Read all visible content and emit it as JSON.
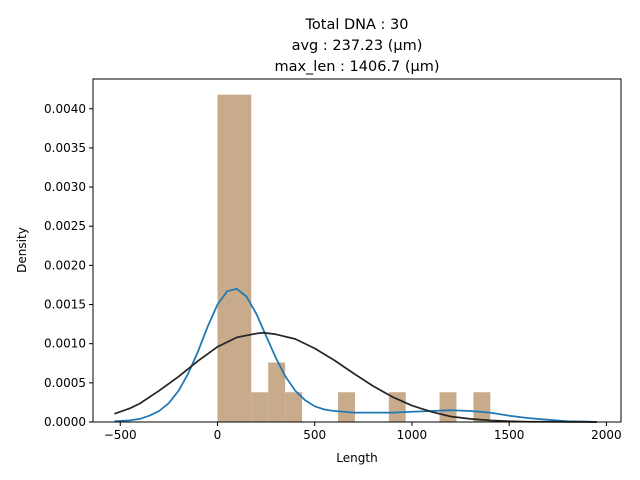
{
  "chart_data": {
    "type": "bar",
    "title_lines": [
      "Total DNA : 30",
      "avg : 237.23 (µm)",
      "max_len : 1406.7 (µm)"
    ],
    "xlabel": "Length",
    "ylabel": "Density",
    "xlim": [
      -640,
      2075
    ],
    "ylim": [
      0,
      0.00438
    ],
    "x_ticks": [
      -500,
      0,
      500,
      1000,
      1500,
      2000
    ],
    "x_tick_labels": [
      "−500",
      "0",
      "500",
      "1000",
      "1500",
      "2000"
    ],
    "y_ticks": [
      0,
      0.0005,
      0.001,
      0.0015,
      0.002,
      0.0025,
      0.003,
      0.0035,
      0.004
    ],
    "y_tick_labels": [
      "0.0000",
      "0.0005",
      "0.0010",
      "0.0015",
      "0.0020",
      "0.0025",
      "0.0030",
      "0.0035",
      "0.0040"
    ],
    "histogram": {
      "color": "#c8ab8b",
      "bins": [
        {
          "x0": 0,
          "x1": 174,
          "density": 0.00418
        },
        {
          "x0": 174,
          "x1": 261,
          "density": 0.00038
        },
        {
          "x0": 261,
          "x1": 348,
          "density": 0.00076
        },
        {
          "x0": 348,
          "x1": 435,
          "density": 0.00038
        },
        {
          "x0": 620,
          "x1": 707,
          "density": 0.00038
        },
        {
          "x0": 881,
          "x1": 968,
          "density": 0.00038
        },
        {
          "x0": 1142,
          "x1": 1229,
          "density": 0.00038
        },
        {
          "x0": 1316,
          "x1": 1403,
          "density": 0.00038
        }
      ]
    },
    "series": [
      {
        "color": "#1f77b4",
        "x": [
          -530,
          -450,
          -400,
          -350,
          -300,
          -250,
          -200,
          -150,
          -100,
          -50,
          0,
          50,
          100,
          150,
          200,
          250,
          300,
          350,
          400,
          450,
          500,
          550,
          600,
          650,
          700,
          800,
          900,
          1000,
          1100,
          1200,
          1300,
          1400,
          1500,
          1600,
          1700,
          1800,
          1900,
          1950
        ],
        "y": [
          1e-05,
          2e-05,
          4e-05,
          8e-05,
          0.00014,
          0.00024,
          0.0004,
          0.00062,
          0.0009,
          0.00122,
          0.0015,
          0.00167,
          0.0017,
          0.0016,
          0.00138,
          0.0011,
          0.00082,
          0.00058,
          0.0004,
          0.00028,
          0.0002,
          0.00016,
          0.00014,
          0.00013,
          0.00012,
          0.00012,
          0.00012,
          0.00013,
          0.00014,
          0.00015,
          0.00014,
          0.00012,
          8e-05,
          5e-05,
          3e-05,
          1e-05,
          5e-06,
          0.0
        ]
      },
      {
        "color": "#262626",
        "x": [
          -530,
          -450,
          -400,
          -300,
          -200,
          -100,
          0,
          100,
          200,
          237,
          300,
          400,
          500,
          600,
          700,
          800,
          900,
          1000,
          1100,
          1200,
          1300,
          1400,
          1500,
          1600,
          1700,
          1800,
          1950
        ],
        "y": [
          0.000105,
          0.000175,
          0.000235,
          0.0004,
          0.00058,
          0.00078,
          0.00096,
          0.00108,
          0.00113,
          0.00114,
          0.00112,
          0.00106,
          0.00094,
          0.00079,
          0.00062,
          0.00046,
          0.00032,
          0.00021,
          0.00013,
          7e-05,
          4e-05,
          2e-05,
          1e-05,
          4e-06,
          2e-06,
          1e-06,
          0.0
        ]
      }
    ],
    "grid": false,
    "legend": "none"
  }
}
